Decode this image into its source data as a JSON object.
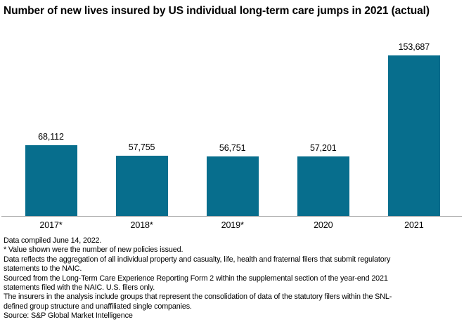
{
  "title": "Number of new lives insured by US individual long-term care jumps in 2021 (actual)",
  "colors": {
    "bar": "#076e8d",
    "axis_line": "#b3b3b3",
    "text": "#000000",
    "background": "#ffffff"
  },
  "chart_data": {
    "type": "bar",
    "title": "Number of new lives insured by US individual long-term care jumps in 2021 (actual)",
    "categories": [
      "2017*",
      "2018*",
      "2019*",
      "2020",
      "2021"
    ],
    "values": [
      68112,
      57755,
      56751,
      57201,
      153687
    ],
    "value_labels": [
      "68,112",
      "57,755",
      "56,751",
      "57,201",
      "153,687"
    ],
    "xlabel": "",
    "ylabel": "",
    "ylim": [
      0,
      160000
    ],
    "grid": false,
    "legend": false,
    "data_labels_position": "above-bars",
    "bar_color": "#076e8d"
  },
  "footnotes": {
    "lines": [
      "Data compiled June 14, 2022.",
      "* Value shown were the number of new policies issued.",
      "Data reflects the aggregation of all individual property and casualty, life, health and fraternal filers that submit regulatory",
      "statements to the NAIC.",
      "Sourced from the Long-Term Care Experience Reporting Form 2 within the supplemental section of the year-end 2021",
      "statements filed with the NAIC. U.S. filers only.",
      "The insurers in the analysis include groups that represent the consolidation of data of the statutory filers within the SNL-",
      "defined group structure and unaffiliated single companies.",
      "Source: S&P Global Market Intelligence"
    ]
  }
}
